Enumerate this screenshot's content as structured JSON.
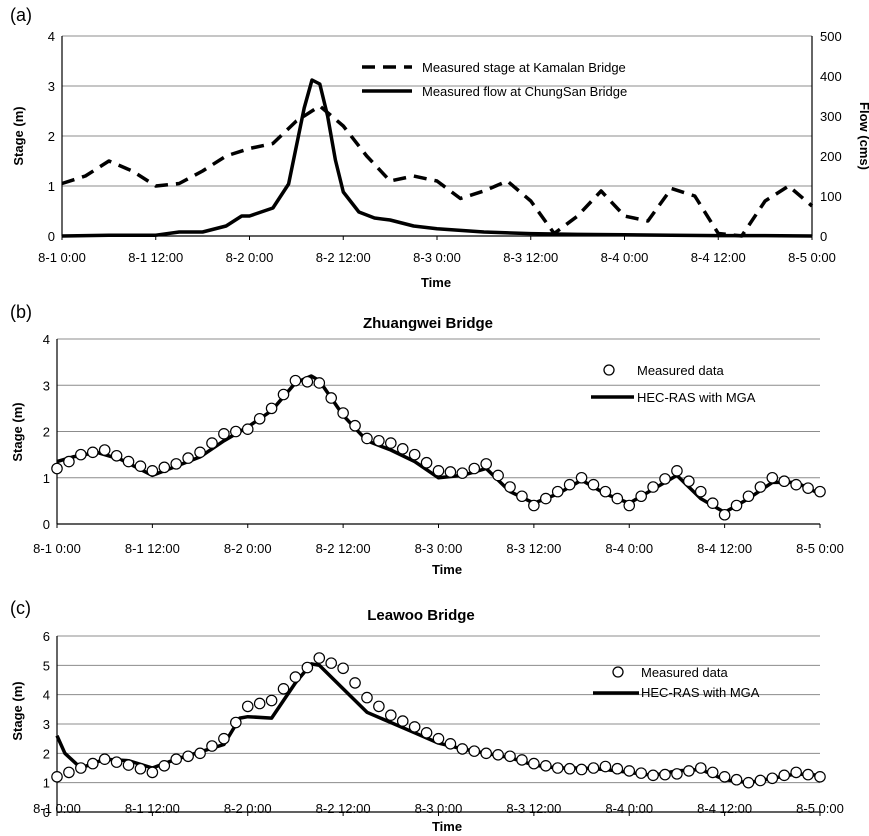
{
  "chart_data": [
    {
      "panel": "(a)",
      "type": "line",
      "title": "",
      "xlabel": "Time",
      "ylabel": "Stage (m)",
      "ylabel_right": "Flow (cms)",
      "x_tick_labels": [
        "8-1 0:00",
        "8-1 12:00",
        "8-2 0:00",
        "8-2 12:00",
        "8-3 0:00",
        "8-3 12:00",
        "8-4 0:00",
        "8-4 12:00",
        "8-5 0:00"
      ],
      "xlim_hours": [
        0,
        96
      ],
      "ylim": [
        0,
        4
      ],
      "y_ticks": [
        "0",
        "1",
        "2",
        "3",
        "4"
      ],
      "ylim_right": [
        0,
        500
      ],
      "y_ticks_right": [
        "0",
        "100",
        "200",
        "300",
        "400",
        "500"
      ],
      "grid": true,
      "legend_position": "top-center",
      "series": [
        {
          "name": "Measured stage at Kamalan Bridge",
          "axis": "left",
          "style": "dashed",
          "x_hours": [
            0,
            3,
            6,
            9,
            12,
            15,
            18,
            21,
            24,
            27,
            30,
            33,
            36,
            39,
            42,
            45,
            48,
            51,
            54,
            57,
            60,
            63,
            66,
            69,
            72,
            75,
            78,
            81,
            84,
            87,
            90,
            93,
            96
          ],
          "y": [
            1.05,
            1.2,
            1.5,
            1.3,
            1.0,
            1.05,
            1.3,
            1.6,
            1.75,
            1.85,
            2.3,
            2.6,
            2.2,
            1.6,
            1.1,
            1.2,
            1.1,
            0.75,
            0.9,
            1.1,
            0.7,
            0.05,
            0.4,
            0.9,
            0.4,
            0.3,
            0.95,
            0.8,
            0.05,
            0.0,
            0.7,
            1.0,
            0.6
          ]
        },
        {
          "name": "Measured flow at ChungSan Bridge",
          "axis": "right",
          "style": "solid",
          "x_hours": [
            0,
            6,
            12,
            15,
            18,
            21,
            23,
            24,
            27,
            29,
            31,
            32,
            33,
            34,
            35,
            36,
            38,
            40,
            42,
            45,
            48,
            54,
            60,
            66,
            72,
            78,
            84,
            90,
            96
          ],
          "y": [
            0,
            2,
            2,
            10,
            10,
            25,
            50,
            50,
            70,
            130,
            320,
            390,
            380,
            300,
            190,
            110,
            60,
            45,
            40,
            25,
            18,
            10,
            6,
            4,
            3,
            2,
            1,
            1,
            0
          ]
        }
      ]
    },
    {
      "panel": "(b)",
      "type": "line",
      "title": "Zhuangwei Bridge",
      "xlabel": "Time",
      "ylabel": "Stage (m)",
      "x_tick_labels": [
        "8-1 0:00",
        "8-1 12:00",
        "8-2 0:00",
        "8-2 12:00",
        "8-3 0:00",
        "8-3 12:00",
        "8-4 0:00",
        "8-4 12:00",
        "8-5 0:00"
      ],
      "xlim_hours": [
        0,
        96
      ],
      "ylim": [
        0,
        4
      ],
      "y_ticks": [
        "0",
        "1",
        "2",
        "3",
        "4"
      ],
      "grid": true,
      "legend_position": "top-right",
      "series": [
        {
          "name": "Measured data",
          "style": "circles",
          "x_hours": [
            0,
            3,
            6,
            9,
            12,
            15,
            18,
            21,
            24,
            27,
            30,
            33,
            36,
            39,
            42,
            45,
            48,
            51,
            54,
            57,
            60,
            63,
            66,
            69,
            72,
            75,
            78,
            81,
            84,
            87,
            90,
            93,
            96
          ],
          "y": [
            1.2,
            1.5,
            1.6,
            1.35,
            1.15,
            1.3,
            1.55,
            1.95,
            2.05,
            2.5,
            3.1,
            3.05,
            2.4,
            1.85,
            1.75,
            1.5,
            1.15,
            1.1,
            1.3,
            0.8,
            0.4,
            0.7,
            1.0,
            0.7,
            0.4,
            0.8,
            1.15,
            0.7,
            0.2,
            0.6,
            1.0,
            0.85,
            0.7
          ]
        },
        {
          "name": "HEC-RAS with MGA",
          "style": "solid",
          "x_hours": [
            0,
            2,
            5,
            8,
            12,
            15,
            18,
            21,
            24,
            27,
            30,
            32,
            33,
            36,
            39,
            42,
            45,
            48,
            51,
            54,
            57,
            60,
            63,
            66,
            69,
            72,
            75,
            78,
            81,
            84,
            87,
            90,
            93,
            96
          ],
          "y": [
            1.35,
            1.45,
            1.55,
            1.4,
            1.05,
            1.25,
            1.45,
            1.8,
            2.1,
            2.45,
            3.05,
            3.2,
            3.1,
            2.35,
            1.8,
            1.6,
            1.35,
            1.0,
            1.05,
            1.2,
            0.7,
            0.45,
            0.65,
            0.95,
            0.65,
            0.45,
            0.75,
            1.05,
            0.55,
            0.25,
            0.55,
            0.9,
            0.9,
            0.65
          ]
        }
      ]
    },
    {
      "panel": "(c)",
      "type": "line",
      "title": "Leawoo Bridge",
      "xlabel": "Time",
      "ylabel": "Stage (m)",
      "x_tick_labels": [
        "8-1 0:00",
        "8-1 12:00",
        "8-2 0:00",
        "8-2 12:00",
        "8-3 0:00",
        "8-3 12:00",
        "8-4 0:00",
        "8-4 12:00",
        "8-5 0:00"
      ],
      "xlim_hours": [
        0,
        96
      ],
      "ylim": [
        0,
        6
      ],
      "y_ticks": [
        "0",
        "1",
        "2",
        "3",
        "4",
        "5",
        "6"
      ],
      "grid": true,
      "legend_position": "right",
      "series": [
        {
          "name": "Measured data",
          "style": "circles",
          "x_hours": [
            0,
            3,
            6,
            9,
            12,
            15,
            18,
            21,
            24,
            27,
            30,
            33,
            36,
            39,
            42,
            45,
            48,
            51,
            54,
            57,
            60,
            63,
            66,
            69,
            72,
            75,
            78,
            81,
            84,
            87,
            90,
            93,
            96
          ],
          "y": [
            1.2,
            1.5,
            1.8,
            1.6,
            1.35,
            1.8,
            2.0,
            2.5,
            3.6,
            3.8,
            4.6,
            5.25,
            4.9,
            3.9,
            3.3,
            2.9,
            2.5,
            2.15,
            2.0,
            1.9,
            1.65,
            1.5,
            1.45,
            1.55,
            1.4,
            1.25,
            1.3,
            1.5,
            1.2,
            1.0,
            1.15,
            1.35,
            1.2
          ]
        },
        {
          "name": "HEC-RAS with MGA",
          "style": "solid",
          "x_hours": [
            0,
            1,
            3,
            6,
            9,
            12,
            15,
            18,
            21,
            23,
            24,
            27,
            30,
            32,
            33,
            36,
            39,
            42,
            45,
            48,
            51,
            54,
            57,
            60,
            63,
            66,
            69,
            72,
            75,
            78,
            81,
            84,
            87,
            90,
            93,
            96
          ],
          "y": [
            2.6,
            2.0,
            1.5,
            1.8,
            1.75,
            1.5,
            1.8,
            2.05,
            2.3,
            3.2,
            3.25,
            3.2,
            4.4,
            5.05,
            5.0,
            4.2,
            3.4,
            3.05,
            2.7,
            2.35,
            2.15,
            2.0,
            1.85,
            1.6,
            1.5,
            1.5,
            1.45,
            1.35,
            1.25,
            1.4,
            1.45,
            1.1,
            1.0,
            1.15,
            1.3,
            1.25
          ]
        }
      ]
    }
  ]
}
